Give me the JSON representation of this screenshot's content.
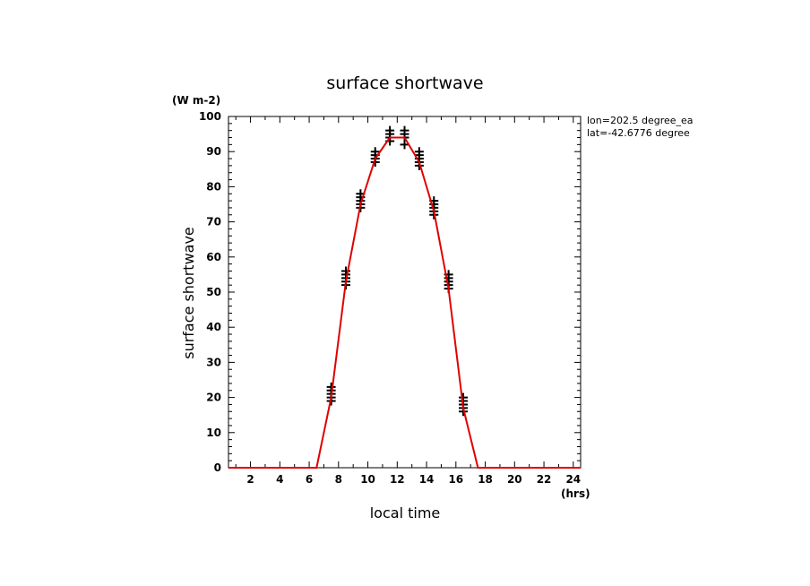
{
  "chart_data": {
    "type": "line",
    "title": "surface shortwave",
    "xlabel": "local time",
    "ylabel": "surface shortwave",
    "x_unit": "(hrs)",
    "y_unit": "(W m-2)",
    "annotations": [
      "lon=202.5 degree_ea",
      "lat=-42.6776 degree"
    ],
    "xlim": [
      0.5,
      24.5
    ],
    "ylim": [
      0,
      100
    ],
    "x_ticks": [
      2,
      4,
      6,
      8,
      10,
      12,
      14,
      16,
      18,
      20,
      22,
      24
    ],
    "y_ticks": [
      0,
      10,
      20,
      30,
      40,
      50,
      60,
      70,
      80,
      90,
      100
    ],
    "grid": false,
    "colors": {
      "line": "#e00000",
      "markers": "#000000"
    },
    "series": [
      {
        "style": "line",
        "x": [
          0.5,
          1.5,
          2.5,
          3.5,
          4.5,
          5.5,
          6.5,
          7.5,
          8.5,
          9.5,
          10.5,
          11.5,
          12.5,
          13.5,
          14.5,
          15.5,
          16.5,
          17.5,
          18.5,
          19.5,
          20.5,
          21.5,
          22.5,
          23.5,
          24.5
        ],
        "y": [
          0,
          0,
          0,
          0,
          0,
          0,
          0,
          20,
          53,
          75,
          88,
          94,
          94,
          87,
          73,
          51,
          17,
          0,
          0,
          0,
          0,
          0,
          0,
          0,
          0
        ]
      },
      {
        "style": "markers",
        "marker": "+",
        "groups": [
          {
            "x": 7.5,
            "y": [
              19,
              20,
              21,
              22,
              23
            ]
          },
          {
            "x": 8.5,
            "y": [
              52,
              53,
              54,
              55,
              56
            ]
          },
          {
            "x": 9.5,
            "y": [
              74,
              75,
              76,
              77,
              78
            ]
          },
          {
            "x": 10.5,
            "y": [
              87,
              88,
              89,
              90
            ]
          },
          {
            "x": 11.5,
            "y": [
              93,
              94,
              95,
              96
            ]
          },
          {
            "x": 12.5,
            "y": [
              92,
              94,
              95,
              96
            ]
          },
          {
            "x": 13.5,
            "y": [
              86,
              87,
              88,
              89,
              90
            ]
          },
          {
            "x": 14.5,
            "y": [
              72,
              73,
              74,
              75,
              76
            ]
          },
          {
            "x": 15.5,
            "y": [
              51,
              52,
              53,
              54,
              55
            ]
          },
          {
            "x": 16.5,
            "y": [
              16,
              17,
              18,
              19,
              20
            ]
          }
        ]
      }
    ]
  }
}
